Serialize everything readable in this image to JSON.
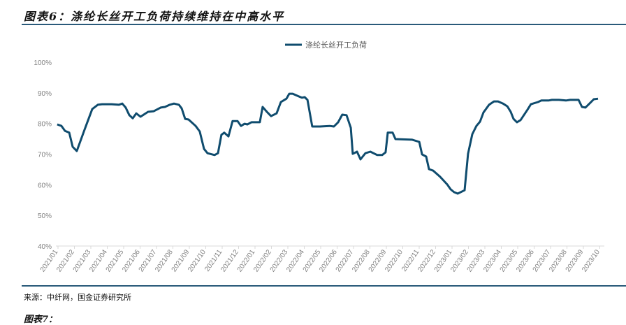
{
  "header": {
    "title": "图表6：涤纶长丝开工负荷持续维持在中高水平"
  },
  "footer": {
    "source": "来源：中纤网，国金证券研究所",
    "next_title": "图表7："
  },
  "colors": {
    "line": "#0f4c6e",
    "rule": "#2a5a7a",
    "axis": "#d9d9d9",
    "tick_text": "#808080"
  },
  "chart_data": {
    "type": "line",
    "title": "",
    "legend": {
      "position": "top-center",
      "entries": [
        "涤纶长丝开工负荷"
      ]
    },
    "ylim": [
      40,
      100
    ],
    "yticks": [
      "40%",
      "50%",
      "60%",
      "70%",
      "80%",
      "90%",
      "100%"
    ],
    "ytick_values": [
      40,
      50,
      60,
      70,
      80,
      90,
      100
    ],
    "categories": [
      "2021/01",
      "2021/02",
      "2021/03",
      "2021/04",
      "2021/05",
      "2021/06",
      "2021/07",
      "2021/08",
      "2021/09",
      "2021/10",
      "2021/11",
      "2021/12",
      "2022/01",
      "2022/02",
      "2022/03",
      "2022/04",
      "2022/05",
      "2022/06",
      "2022/07",
      "2022/08",
      "2022/09",
      "2022/10",
      "2022/11",
      "2022/12",
      "2023/01",
      "2023/02",
      "2023/03",
      "2023/04",
      "2023/05",
      "2023/06",
      "2023/07",
      "2023/08",
      "2023/09",
      "2023/10"
    ],
    "x_unit": "months since 2021/01",
    "series": [
      {
        "name": "涤纶长丝开工负荷",
        "x": [
          0.38,
          0.64,
          0.85,
          1.11,
          1.32,
          1.57,
          2.04,
          2.51,
          2.85,
          3.11,
          3.7,
          4.13,
          4.34,
          4.55,
          4.77,
          4.98,
          5.19,
          5.45,
          5.91,
          6.26,
          6.68,
          6.94,
          7.23,
          7.49,
          7.79,
          7.96,
          8.17,
          8.38,
          8.81,
          9.06,
          9.32,
          9.53,
          9.96,
          10.17,
          10.38,
          10.55,
          10.81,
          11.06,
          11.36,
          11.57,
          11.79,
          11.96,
          12.21,
          12.47,
          12.72,
          12.89,
          13.15,
          13.4,
          13.74,
          14.0,
          14.34,
          14.51,
          14.72,
          15.11,
          15.28,
          15.45,
          15.62,
          15.91,
          16.38,
          16.98,
          17.23,
          17.49,
          17.74,
          18.0,
          18.26,
          18.38,
          18.64,
          18.85,
          19.15,
          19.45,
          19.87,
          20.17,
          20.38,
          20.51,
          20.81,
          20.98,
          22.0,
          22.43,
          22.6,
          22.85,
          23.02,
          23.28,
          23.7,
          24.13,
          24.34,
          24.55,
          24.77,
          25.19,
          25.4,
          25.66,
          25.91,
          26.13,
          26.34,
          26.68,
          26.98,
          27.23,
          27.53,
          27.79,
          28.0,
          28.17,
          28.38,
          28.6,
          29.02,
          29.23,
          29.66,
          29.87,
          30.3,
          30.51,
          30.94,
          31.36,
          31.62,
          32.13,
          32.34,
          32.55,
          32.85,
          33.06,
          33.32
        ],
        "values": [
          79.7,
          79.2,
          77.6,
          77.0,
          72.4,
          71.0,
          77.9,
          84.7,
          86.1,
          86.3,
          86.3,
          86.1,
          86.5,
          85.2,
          82.7,
          81.7,
          83.3,
          82.2,
          83.8,
          84.0,
          85.2,
          85.4,
          86.1,
          86.5,
          86.1,
          84.9,
          81.5,
          81.3,
          79.2,
          77.4,
          71.7,
          70.3,
          69.7,
          70.3,
          76.3,
          77.0,
          75.8,
          80.8,
          80.8,
          79.2,
          79.9,
          79.7,
          80.4,
          80.4,
          80.4,
          85.4,
          83.8,
          82.4,
          83.3,
          87.0,
          88.1,
          89.7,
          89.7,
          88.8,
          88.4,
          88.6,
          87.7,
          79.0,
          79.0,
          79.2,
          79.0,
          80.4,
          82.9,
          82.7,
          78.6,
          70.1,
          70.8,
          68.3,
          70.3,
          70.8,
          69.7,
          69.7,
          70.6,
          77.0,
          77.0,
          74.9,
          74.7,
          74.0,
          69.9,
          69.2,
          65.1,
          64.6,
          62.6,
          60.1,
          58.5,
          57.6,
          57.1,
          58.2,
          70.1,
          76.5,
          79.2,
          80.6,
          83.6,
          86.1,
          87.2,
          87.2,
          86.5,
          85.6,
          83.8,
          81.5,
          80.4,
          81.1,
          84.5,
          86.3,
          87.0,
          87.5,
          87.5,
          87.7,
          87.7,
          87.5,
          87.7,
          87.7,
          85.4,
          85.2,
          86.8,
          87.9,
          88.1
        ]
      }
    ]
  }
}
